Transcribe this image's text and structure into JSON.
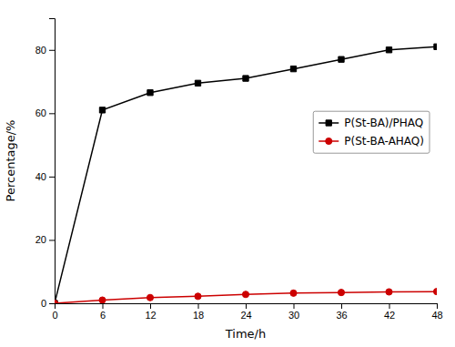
{
  "chart_data": {
    "type": "line",
    "x": [
      0,
      6,
      12,
      18,
      24,
      30,
      36,
      42,
      48
    ],
    "series": [
      {
        "name": "P(St-BA)/PHAQ",
        "color": "#000000",
        "marker": "square",
        "values": [
          0,
          61,
          66.5,
          69.5,
          71,
          74,
          77,
          80,
          81
        ]
      },
      {
        "name": "P(St-BA-AHAQ)",
        "color": "#cc0000",
        "marker": "circle",
        "values": [
          0,
          1,
          1.8,
          2.2,
          2.8,
          3.2,
          3.4,
          3.6,
          3.7
        ]
      }
    ],
    "xlabel": "Time/h",
    "ylabel": "Percentage/%",
    "xlim": [
      0,
      48
    ],
    "ylim": [
      0,
      90
    ],
    "xticks": [
      0,
      6,
      12,
      18,
      24,
      30,
      36,
      42,
      48
    ],
    "yticks": [
      0,
      20,
      40,
      60,
      80
    ],
    "grid": false,
    "legend": "right"
  }
}
